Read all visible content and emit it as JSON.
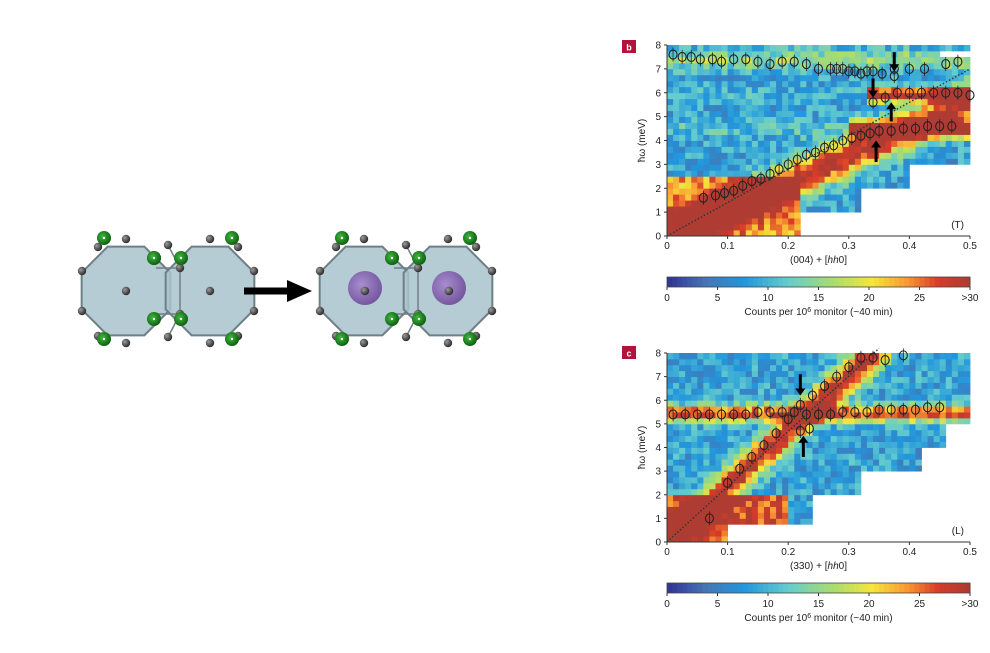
{
  "structure": {
    "arrow_color": "#000000",
    "cell_fill": "#a8c3cc",
    "cell_edge": "#6f7f86",
    "atom_dark": "#4a4a4a",
    "atom_green": "#1d7a1d",
    "atom_purple": "#8a6bb0"
  },
  "chart_data": [
    {
      "panel": "b",
      "type": "heatmap",
      "title": "",
      "xlabel_prefix": "(004) + [",
      "xlabel_italic": "hh",
      "xlabel_suffix": "0]",
      "ylabel": "ħω (meV)",
      "xlim": [
        0,
        0.5
      ],
      "ylim": [
        0,
        8
      ],
      "xticks": [
        "0",
        "0.1",
        "0.2",
        "0.3",
        "0.4",
        "0.5"
      ],
      "yticks": [
        "0",
        "1",
        "2",
        "3",
        "4",
        "5",
        "6",
        "7",
        "8"
      ],
      "polarization_label": "(T)",
      "colorbar": {
        "ticks": [
          "0",
          "5",
          "10",
          "15",
          "20",
          "25",
          ">30"
        ],
        "label_prefix": "Counts per 10",
        "label_sup": "6",
        "label_suffix": " monitor (~40 min)"
      },
      "branches": [
        {
          "x": [
            0.01,
            0.025,
            0.04,
            0.055,
            0.075,
            0.09,
            0.11,
            0.13,
            0.15,
            0.17,
            0.19,
            0.21,
            0.23,
            0.25,
            0.27,
            0.28,
            0.29,
            0.3,
            0.31,
            0.32,
            0.33,
            0.34,
            0.355,
            0.375,
            0.4,
            0.425,
            0.46,
            0.48
          ],
          "y": [
            7.6,
            7.5,
            7.5,
            7.4,
            7.4,
            7.3,
            7.4,
            7.4,
            7.3,
            7.2,
            7.3,
            7.3,
            7.2,
            7.0,
            7.0,
            7.0,
            7.0,
            6.9,
            6.9,
            6.8,
            6.9,
            6.9,
            6.8,
            7.0,
            7.0,
            7.0,
            7.2,
            7.3
          ]
        },
        {
          "x": [
            0.34,
            0.36,
            0.38,
            0.4,
            0.42,
            0.44,
            0.46,
            0.48,
            0.5
          ],
          "y": [
            5.6,
            5.8,
            6.0,
            6.0,
            6.0,
            6.0,
            6.0,
            6.0,
            5.9
          ]
        },
        {
          "x": [
            0.06,
            0.08,
            0.095,
            0.11,
            0.125,
            0.14,
            0.155,
            0.17,
            0.185,
            0.2,
            0.215,
            0.23,
            0.245,
            0.26,
            0.275,
            0.29,
            0.305,
            0.32,
            0.335,
            0.35,
            0.37,
            0.39,
            0.41,
            0.43,
            0.45,
            0.47
          ],
          "y": [
            1.6,
            1.7,
            1.8,
            1.9,
            2.1,
            2.3,
            2.4,
            2.6,
            2.8,
            3.0,
            3.2,
            3.4,
            3.5,
            3.7,
            3.8,
            4.0,
            4.1,
            4.2,
            4.3,
            4.4,
            4.4,
            4.5,
            4.5,
            4.6,
            4.6,
            4.6
          ]
        },
        {
          "x": [
            0.375
          ],
          "y": [
            6.7
          ]
        }
      ],
      "arrows": [
        {
          "x": 0.375,
          "y_from": 7.7,
          "y_to": 6.9,
          "dir": "down"
        },
        {
          "x": 0.34,
          "y_from": 6.6,
          "y_to": 5.8,
          "dir": "down"
        },
        {
          "x": 0.37,
          "y_from": 4.8,
          "y_to": 5.6,
          "dir": "up"
        },
        {
          "x": 0.345,
          "y_from": 3.1,
          "y_to": 4.0,
          "dir": "up"
        }
      ],
      "diagonal": [
        [
          0,
          0
        ],
        [
          0.5,
          7.0
        ]
      ]
    },
    {
      "panel": "c",
      "type": "heatmap",
      "title": "",
      "xlabel_prefix": "(330) + [",
      "xlabel_italic": "hh",
      "xlabel_suffix": "0]",
      "ylabel": "ħω (meV)",
      "xlim": [
        0,
        0.5
      ],
      "ylim": [
        0,
        8
      ],
      "xticks": [
        "0",
        "0.1",
        "0.2",
        "0.3",
        "0.4",
        "0.5"
      ],
      "yticks": [
        "0",
        "1",
        "2",
        "3",
        "4",
        "5",
        "6",
        "7",
        "8"
      ],
      "polarization_label": "(L)",
      "colorbar": {
        "ticks": [
          "0",
          "5",
          "10",
          "15",
          "20",
          "25",
          ">30"
        ],
        "label_prefix": "Counts per 10",
        "label_sup": "6",
        "label_suffix": " monitor (~40 min)"
      },
      "branches": [
        {
          "x": [
            0.01,
            0.03,
            0.05,
            0.07,
            0.09,
            0.11,
            0.13,
            0.15,
            0.17,
            0.19,
            0.21,
            0.23,
            0.25,
            0.27,
            0.29,
            0.31,
            0.33,
            0.35,
            0.37,
            0.39,
            0.41,
            0.43,
            0.45
          ],
          "y": [
            5.4,
            5.4,
            5.4,
            5.4,
            5.4,
            5.4,
            5.4,
            5.5,
            5.5,
            5.5,
            5.5,
            5.4,
            5.4,
            5.4,
            5.5,
            5.5,
            5.5,
            5.6,
            5.6,
            5.6,
            5.6,
            5.7,
            5.7
          ]
        },
        {
          "x": [
            0.07,
            0.1,
            0.12,
            0.14,
            0.16,
            0.18,
            0.2,
            0.22,
            0.24,
            0.26,
            0.28,
            0.3,
            0.32,
            0.34,
            0.36,
            0.39
          ],
          "y": [
            1.0,
            2.5,
            3.1,
            3.6,
            4.1,
            4.6,
            5.2,
            5.8,
            6.2,
            6.6,
            7.0,
            7.4,
            7.8,
            7.8,
            7.7,
            7.9
          ]
        },
        {
          "x": [
            0.22,
            0.235
          ],
          "y": [
            4.7,
            4.8
          ]
        }
      ],
      "arrows": [
        {
          "x": 0.22,
          "y_from": 7.1,
          "y_to": 6.2,
          "dir": "down"
        },
        {
          "x": 0.225,
          "y_from": 3.6,
          "y_to": 4.5,
          "dir": "up"
        }
      ],
      "diagonal": [
        [
          0,
          0
        ],
        [
          0.35,
          8.2
        ]
      ]
    }
  ]
}
